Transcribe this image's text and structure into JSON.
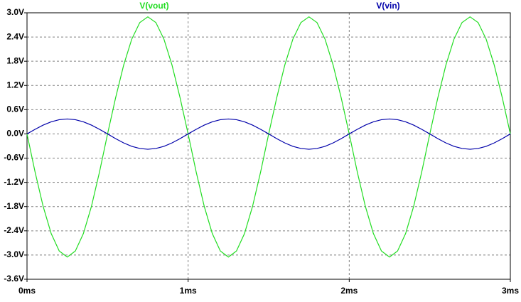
{
  "chart_data": {
    "type": "line",
    "x": [
      0,
      0.05,
      0.1,
      0.15,
      0.2,
      0.25,
      0.3,
      0.35,
      0.4,
      0.45,
      0.5,
      0.55,
      0.6,
      0.65,
      0.7,
      0.75,
      0.8,
      0.85,
      0.9,
      0.95,
      1,
      1.05,
      1.1,
      1.15,
      1.2,
      1.25,
      1.3,
      1.35,
      1.4,
      1.45,
      1.5,
      1.55,
      1.6,
      1.65,
      1.7,
      1.75,
      1.8,
      1.85,
      1.9,
      1.95,
      2,
      2.05,
      2.1,
      2.15,
      2.2,
      2.25,
      2.3,
      2.35,
      2.4,
      2.45,
      2.5,
      2.55,
      2.6,
      2.65,
      2.7,
      2.75,
      2.8,
      2.85,
      2.9,
      2.95,
      3
    ],
    "series": [
      {
        "name": "V(vout)",
        "color": "#22dd22",
        "values": [
          0,
          -0.942,
          -1.793,
          -2.467,
          -2.901,
          -3.05,
          -2.901,
          -2.467,
          -1.793,
          -0.942,
          0,
          0.896,
          1.705,
          2.346,
          2.758,
          2.9,
          2.758,
          2.346,
          1.705,
          0.896,
          0,
          -0.942,
          -1.793,
          -2.467,
          -2.901,
          -3.05,
          -2.901,
          -2.467,
          -1.793,
          -0.942,
          0,
          0.896,
          1.705,
          2.346,
          2.758,
          2.9,
          2.758,
          2.346,
          1.705,
          0.896,
          0,
          -0.942,
          -1.793,
          -2.467,
          -2.901,
          -3.05,
          -2.901,
          -2.467,
          -1.793,
          -0.942,
          0,
          0.896,
          1.705,
          2.346,
          2.758,
          2.9,
          2.758,
          2.346,
          1.705,
          0.896,
          0
        ]
      },
      {
        "name": "V(vin)",
        "color": "#0000aa",
        "values": [
          0,
          0.114,
          0.218,
          0.299,
          0.352,
          0.37,
          0.352,
          0.299,
          0.218,
          0.114,
          0,
          -0.117,
          -0.223,
          -0.307,
          -0.361,
          -0.38,
          -0.361,
          -0.307,
          -0.223,
          -0.117,
          0,
          0.114,
          0.218,
          0.299,
          0.352,
          0.37,
          0.352,
          0.299,
          0.218,
          0.114,
          0,
          -0.117,
          -0.223,
          -0.307,
          -0.361,
          -0.38,
          -0.361,
          -0.307,
          -0.223,
          -0.117,
          0,
          0.114,
          0.218,
          0.299,
          0.352,
          0.37,
          0.352,
          0.299,
          0.218,
          0.114,
          0,
          -0.117,
          -0.223,
          -0.307,
          -0.361,
          -0.38,
          -0.361,
          -0.307,
          -0.223,
          -0.117,
          0
        ]
      }
    ],
    "xlim": [
      0,
      3
    ],
    "xticks": [
      {
        "value": 0,
        "label": "0ms"
      },
      {
        "value": 1,
        "label": "1ms"
      },
      {
        "value": 2,
        "label": "2ms"
      },
      {
        "value": 3,
        "label": "3ms"
      }
    ],
    "ylim": [
      -3.6,
      3.0
    ],
    "yticks": [
      {
        "value": -3.6,
        "label": "-3.6V"
      },
      {
        "value": -3.0,
        "label": "-3.0V"
      },
      {
        "value": -2.4,
        "label": "-2.4V"
      },
      {
        "value": -1.8,
        "label": "-1.8V"
      },
      {
        "value": -1.2,
        "label": "-1.2V"
      },
      {
        "value": -0.6,
        "label": "-0.6V"
      },
      {
        "value": 0.0,
        "label": "0.0V"
      },
      {
        "value": 0.6,
        "label": "0.6V"
      },
      {
        "value": 1.2,
        "label": "1.2V"
      },
      {
        "value": 1.8,
        "label": "1.8V"
      },
      {
        "value": 2.4,
        "label": "2.4V"
      },
      {
        "value": 3.0,
        "label": "3.0V"
      }
    ],
    "grid": true
  }
}
